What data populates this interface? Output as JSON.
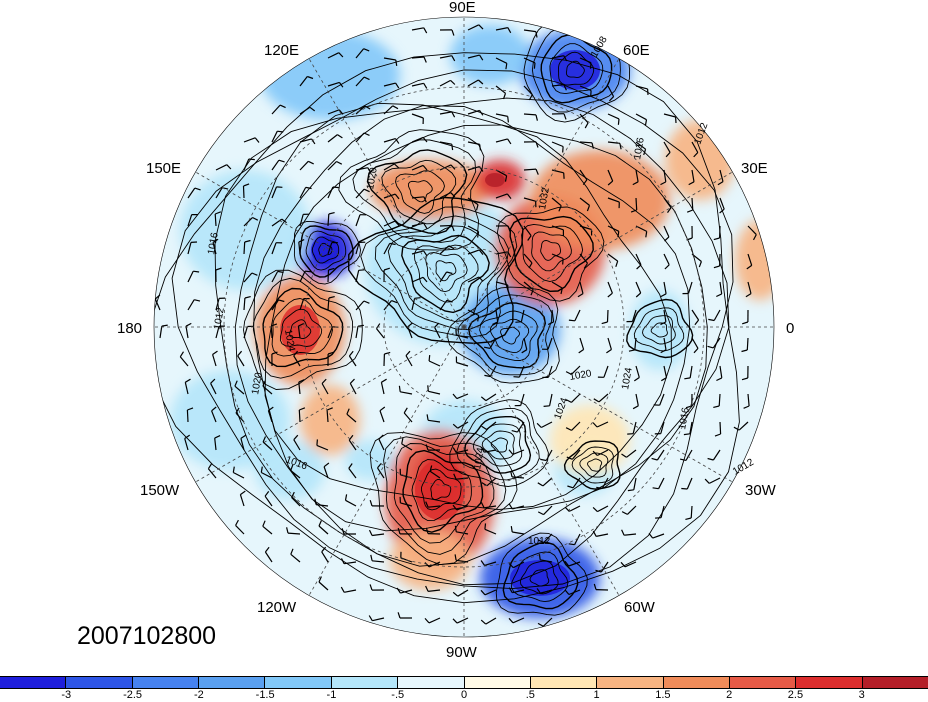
{
  "map": {
    "projection": "polar-stereographic-north",
    "longitude_labels": [
      "90E",
      "120E",
      "60E",
      "150E",
      "30E",
      "180",
      "0",
      "150W",
      "30W",
      "120W",
      "60W",
      "90W"
    ],
    "contour_labels": [
      "1008",
      "1012",
      "1016",
      "1020",
      "1024",
      "1028",
      "1032"
    ],
    "anomaly_features": [
      {
        "sign": "negative",
        "region": "Siberia (60E)"
      },
      {
        "sign": "negative",
        "region": "near 90E coast"
      },
      {
        "sign": "negative",
        "region": "East Siberian Sea (150E)"
      },
      {
        "sign": "negative",
        "region": "Arctic Ocean near pole"
      },
      {
        "sign": "negative",
        "region": "Greenland / Baffin"
      },
      {
        "sign": "negative",
        "region": "North Atlantic (60W)"
      },
      {
        "sign": "positive",
        "region": "Central Asia"
      },
      {
        "sign": "positive",
        "region": "Europe / Scandinavia"
      },
      {
        "sign": "positive",
        "region": "North Pacific (180)"
      },
      {
        "sign": "positive",
        "region": "North America (90W)"
      }
    ]
  },
  "date_label": "2007102800",
  "colorbar": {
    "colors": [
      "#1e1edc",
      "#2d55e6",
      "#4682f0",
      "#5aa0f0",
      "#82c8f8",
      "#b4e6fa",
      "#e6f6fc",
      "#fffae6",
      "#ffe6b4",
      "#f7b482",
      "#f08c5a",
      "#e65a46",
      "#dc2d2d",
      "#b41e28"
    ],
    "tick_labels": [
      "-3",
      "-2.5",
      "-2",
      "-1.5",
      "-1",
      "-.5",
      "0",
      ".5",
      "1",
      "1.5",
      "2",
      "2.5",
      "3"
    ]
  },
  "colors": {
    "negative_strong": "#1e1edc",
    "neutral": "#e6f6fc",
    "positive_strong": "#b41e28"
  }
}
